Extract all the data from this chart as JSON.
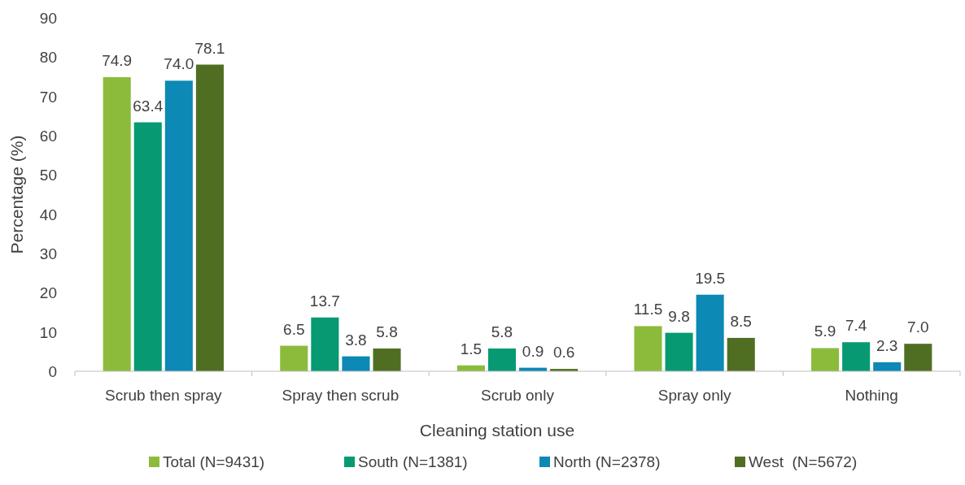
{
  "chart_data": {
    "type": "bar",
    "xlabel": "Cleaning station use",
    "ylabel": "Percentage (%)",
    "categories": [
      "Scrub then spray",
      "Spray then scrub",
      "Scrub only",
      "Spray only",
      "Nothing"
    ],
    "series": [
      {
        "name": "Total (N=9431)",
        "color": "#8cbb3c",
        "values": [
          74.9,
          6.5,
          1.5,
          11.5,
          5.9
        ],
        "value_labels": [
          "74.9",
          "6.5",
          "1.5",
          "11.5",
          "5.9"
        ]
      },
      {
        "name": "South (N=1381)",
        "color": "#079a72",
        "values": [
          63.4,
          13.7,
          5.8,
          9.8,
          7.4
        ],
        "value_labels": [
          "63.4",
          "13.7",
          "5.8",
          "9.8",
          "7.4"
        ]
      },
      {
        "name": "North (N=2378)",
        "color": "#0c89b4",
        "values": [
          74.0,
          3.8,
          0.9,
          19.5,
          2.3
        ],
        "value_labels": [
          "74.0",
          "3.8",
          "0.9",
          "19.5",
          "2.3"
        ]
      },
      {
        "name": "West  (N=5672)",
        "color": "#506e22",
        "values": [
          78.1,
          5.8,
          0.6,
          8.5,
          7.0
        ],
        "value_labels": [
          "78.1",
          "5.8",
          "0.6",
          "8.5",
          "7.0"
        ]
      }
    ],
    "ylim": [
      0,
      90
    ],
    "yticks": [
      0,
      10,
      20,
      30,
      40,
      50,
      60,
      70,
      80,
      90
    ],
    "grid": false,
    "legend": "bottom"
  }
}
